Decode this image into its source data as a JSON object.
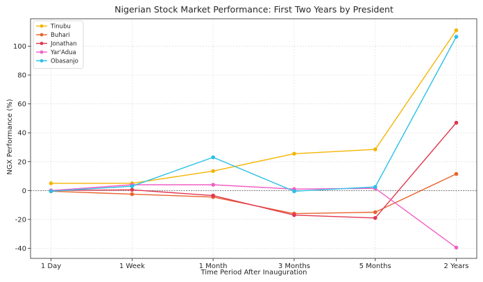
{
  "chart_data": {
    "type": "line",
    "title": "Nigerian Stock Market Performance: First Two Years by President",
    "xlabel": "Time Period After Inauguration",
    "ylabel": "NGX Performance (%)",
    "categories": [
      "1 Day",
      "1 Week",
      "1 Month",
      "3 Months",
      "5 Months",
      "2 Years"
    ],
    "ylim": [
      -47,
      119
    ],
    "yticks": [
      -40,
      -20,
      0,
      20,
      40,
      60,
      80,
      100
    ],
    "grid": true,
    "zero_line": true,
    "legend_position": "top-left",
    "series": [
      {
        "name": "Tinubu",
        "color": "#f5b400",
        "values": [
          5,
          5,
          13.5,
          25.5,
          28.5,
          111
        ]
      },
      {
        "name": "Buhari",
        "color": "#e8622c",
        "values": [
          -0.5,
          -2.5,
          -4.5,
          -16,
          -15,
          11.5
        ]
      },
      {
        "name": "Jonathan",
        "color": "#e0364f",
        "values": [
          0,
          0.5,
          -3.5,
          -17,
          -19,
          47
        ]
      },
      {
        "name": "Yar'Adua",
        "color": "#f25ec4",
        "values": [
          0,
          4,
          4,
          1,
          1.5,
          -39.5
        ]
      },
      {
        "name": "Obasanjo",
        "color": "#29bfe8",
        "values": [
          -0.5,
          3,
          23,
          -0.5,
          2.5,
          106.5
        ]
      }
    ]
  }
}
